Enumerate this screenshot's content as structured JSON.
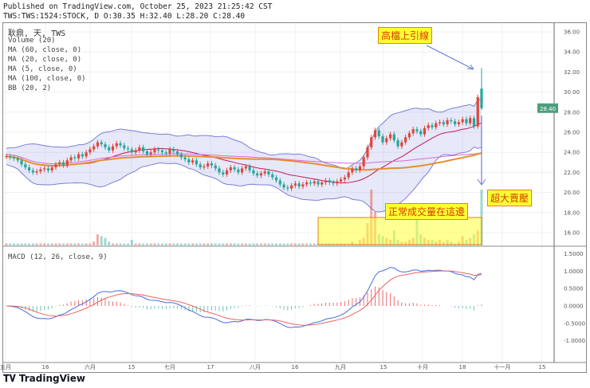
{
  "header": {
    "published": "Published on TradingView.com, October 25, 2023 21:25:42 CST",
    "symbol_line": "TWS:TWS:1524:STOCK, D O:30.35 H:32.40 L:28.20 C:28.40"
  },
  "legend": [
    "耿鼎, 天, TWS",
    "Volume (20)",
    "MA (60, close, 0)",
    "MA (20, close, 0)",
    "MA (5, close, 0)",
    "MA (100, close, 0)",
    "BB (20, 2)"
  ],
  "macd_legend": "MACD (12, 26, close, 9)",
  "annotations": {
    "top": "高檔上引線",
    "volume": "正常成交量在這邊",
    "sell": "超大賣壓"
  },
  "last_price": "28.40",
  "logo": "TradingView",
  "colors": {
    "up": "#e0463a",
    "down": "#26a69a",
    "bb": "#7b7fd6",
    "ma60": "#e88e2e",
    "ma20": "#c2185b",
    "ma100": "#d86bd8"
  },
  "chart_data": {
    "type": "candlestick",
    "price_ylim": [
      15,
      37
    ],
    "price_ticks": [
      "36.00",
      "34.00",
      "32.00",
      "30.00",
      "28.00",
      "26.00",
      "24.00",
      "22.00",
      "20.00",
      "18.00",
      "16.00"
    ],
    "macd_ticks": [
      "1.5000",
      "1.0000",
      "0.5000",
      "0.0000",
      "-0.5000",
      "-1.0000"
    ],
    "x_ticks": [
      "五月",
      "16",
      "六月",
      "15",
      "七月",
      "17",
      "八月",
      "16",
      "九月",
      "15",
      "十月",
      "18",
      "十一月",
      "15"
    ],
    "closes": [
      23.6,
      23.5,
      23.4,
      23.2,
      22.8,
      22.5,
      22.2,
      22.0,
      22.1,
      22.3,
      22.4,
      22.2,
      22.5,
      22.8,
      23.0,
      22.7,
      23.2,
      23.5,
      23.4,
      23.8,
      23.6,
      24.0,
      24.3,
      24.6,
      25.0,
      24.8,
      24.5,
      24.2,
      24.6,
      24.9,
      24.7,
      24.4,
      24.3,
      24.0,
      24.2,
      24.5,
      24.1,
      23.8,
      24.0,
      24.3,
      24.2,
      24.0,
      23.9,
      24.3,
      24.1,
      23.8,
      23.5,
      23.3,
      23.0,
      23.2,
      22.8,
      22.5,
      22.6,
      22.9,
      22.7,
      22.4,
      22.0,
      21.8,
      22.2,
      22.5,
      22.3,
      22.0,
      22.4,
      22.6,
      22.2,
      21.9,
      21.7,
      21.9,
      22.1,
      21.8,
      21.5,
      21.2,
      20.8,
      20.5,
      20.4,
      20.7,
      20.9,
      20.6,
      20.8,
      21.0,
      20.9,
      21.1,
      20.8,
      21.0,
      21.2,
      21.0,
      20.9,
      21.1,
      21.3,
      21.5,
      22.0,
      22.4,
      22.2,
      22.6,
      23.5,
      24.5,
      25.5,
      26.2,
      25.6,
      25.0,
      25.4,
      25.8,
      25.2,
      24.6,
      25.0,
      25.5,
      25.9,
      26.3,
      26.1,
      25.8,
      26.4,
      26.7,
      26.5,
      26.9,
      27.0,
      26.8,
      27.2,
      27.1,
      26.8,
      27.0,
      27.3,
      26.9,
      27.4,
      26.6,
      29.5,
      28.4
    ],
    "last_bar": {
      "open": 30.35,
      "high": 32.4,
      "low": 28.2,
      "close": 28.4
    },
    "volumes": [
      1,
      1,
      1,
      1,
      1,
      1,
      1,
      1,
      1,
      1,
      1,
      1,
      1,
      1,
      1,
      1,
      1,
      1,
      1,
      1,
      1,
      1,
      1,
      2,
      6,
      5,
      4,
      2,
      1,
      1,
      1,
      1,
      1,
      3,
      1,
      1,
      1,
      1,
      1,
      1,
      1,
      1,
      1,
      1,
      1,
      1,
      1,
      1,
      1,
      1,
      1,
      1,
      1,
      1,
      1,
      1,
      1,
      1,
      1,
      1,
      1,
      1,
      1,
      1,
      1,
      1,
      1,
      1,
      1,
      1,
      1,
      1,
      1,
      1,
      1,
      1,
      1,
      1,
      1,
      1,
      1,
      1,
      1,
      1,
      1,
      1,
      1,
      1,
      1,
      1,
      1,
      2,
      1,
      3,
      4,
      12,
      30,
      18,
      6,
      5,
      4,
      3,
      8,
      3,
      2,
      2,
      3,
      4,
      16,
      6,
      4,
      3,
      3,
      2,
      3,
      2,
      3,
      2,
      1,
      2,
      5,
      3,
      4,
      6,
      8,
      30
    ]
  }
}
